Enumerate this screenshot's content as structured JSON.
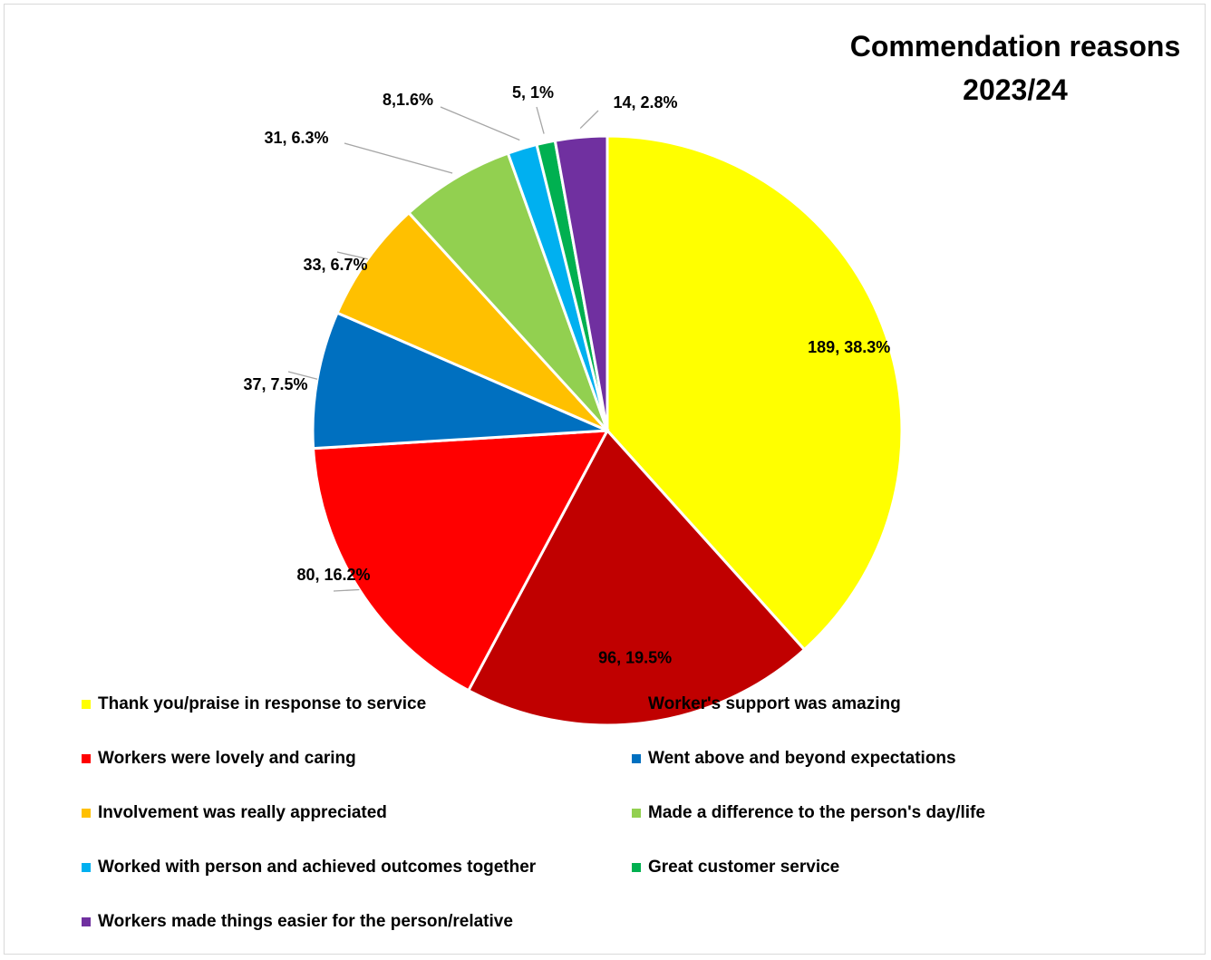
{
  "chart_data": {
    "type": "pie",
    "title_lines": [
      "Commendation reasons",
      "2023/24"
    ],
    "slices": [
      {
        "name": "Thank you/praise in response to service",
        "value": 189,
        "percent": "38.3%",
        "label": "189, 38.3%",
        "color": "#ffff00"
      },
      {
        "name": "Worker's support was amazing",
        "value": 96,
        "percent": "19.5%",
        "label": "96, 19.5%",
        "color": "#c00000"
      },
      {
        "name": "Workers were lovely and caring",
        "value": 80,
        "percent": "16.2%",
        "label": "80, 16.2%",
        "color": "#ff0000"
      },
      {
        "name": "Went above and beyond expectations",
        "value": 37,
        "percent": "7.5%",
        "label": "37, 7.5%",
        "color": "#0070c0"
      },
      {
        "name": "Involvement was really appreciated",
        "value": 33,
        "percent": "6.7%",
        "label": "33, 6.7%",
        "color": "#ffc000"
      },
      {
        "name": "Made a difference to the person's day/life",
        "value": 31,
        "percent": "6.3%",
        "label": "31, 6.3%",
        "color": "#92d050"
      },
      {
        "name": "Worked with person and achieved outcomes together",
        "value": 8,
        "percent": "1.6%",
        "label": "8,1.6%",
        "color": "#00b0f0"
      },
      {
        "name": "Great customer service",
        "value": 5,
        "percent": "1%",
        "label": "5, 1%",
        "color": "#00b050"
      },
      {
        "name": "Workers made things easier for the person/relative",
        "value": 14,
        "percent": "2.8%",
        "label": "14, 2.8%",
        "color": "#7030a0"
      }
    ],
    "legend_position": "bottom",
    "legend_columns": 2
  }
}
